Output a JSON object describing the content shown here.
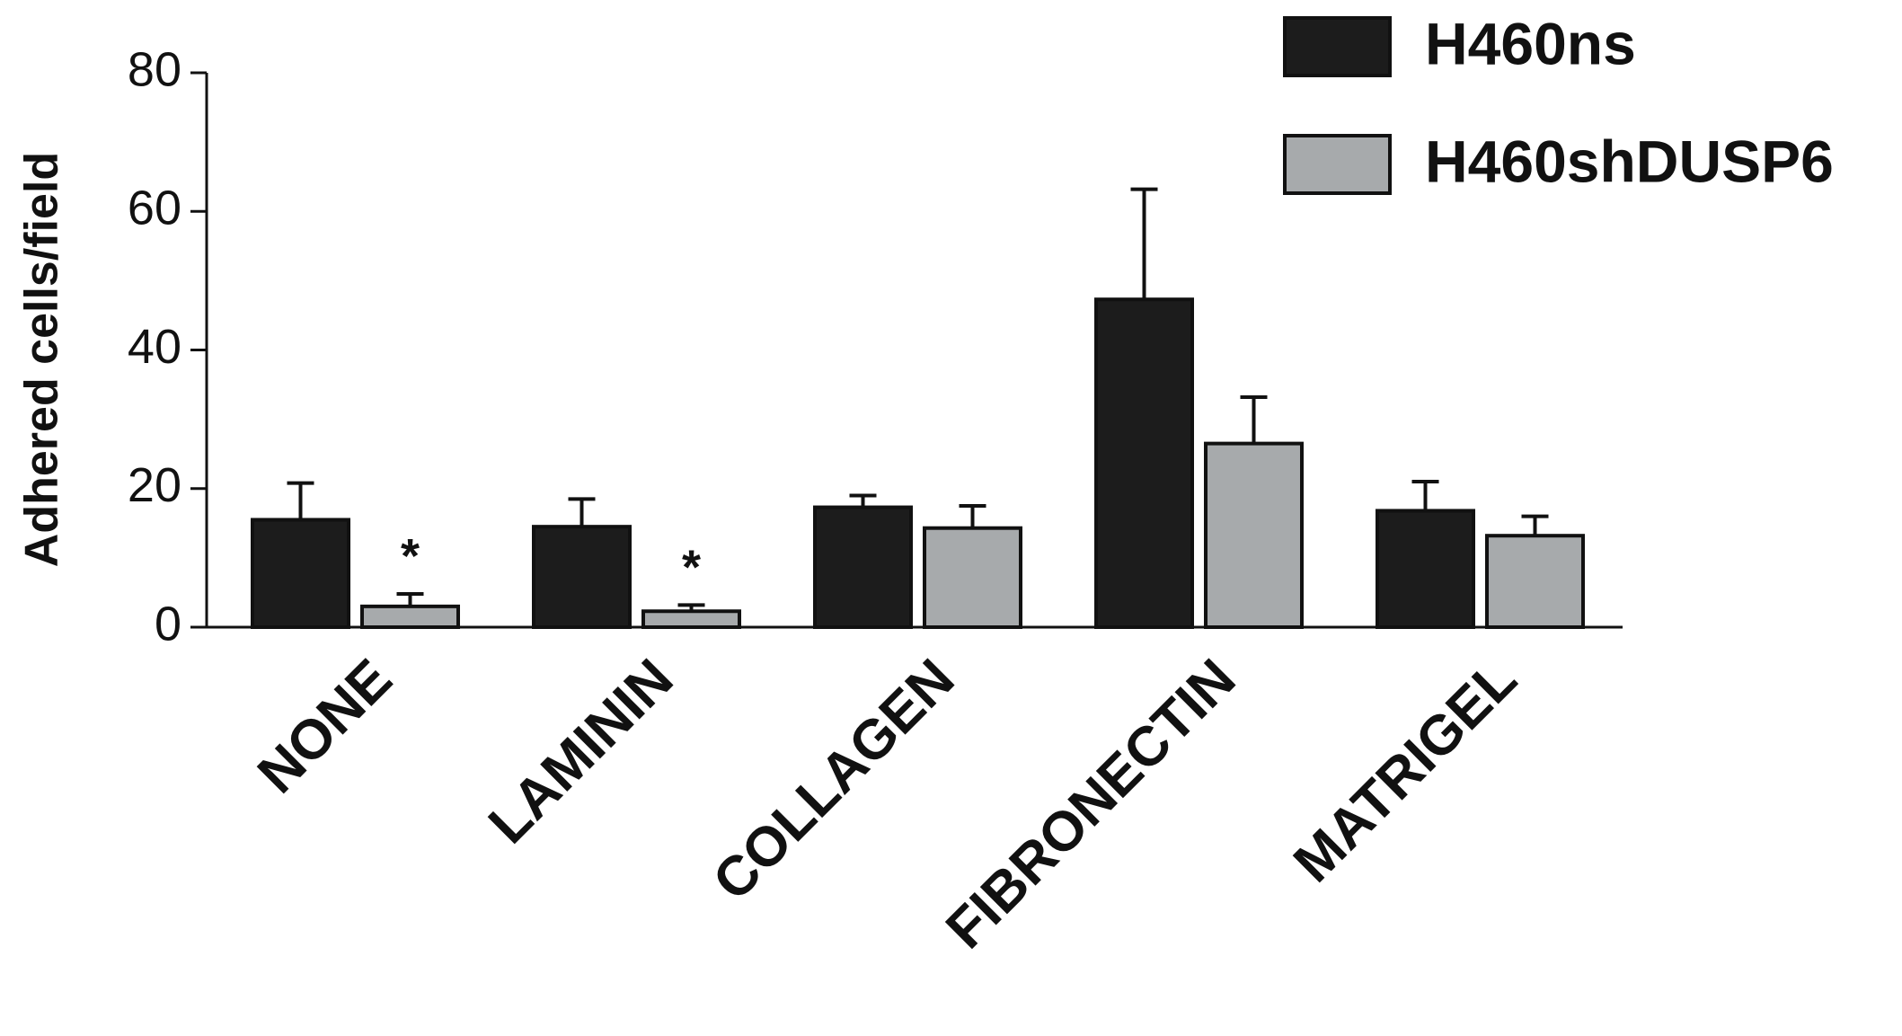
{
  "chart_data": {
    "type": "bar",
    "y_label": "Adhered cells/field",
    "categories": [
      "NONE",
      "LAMININ",
      "COLLAGEN",
      "FIBRONECTIN",
      "MATRIGEL"
    ],
    "series": [
      {
        "name": "H460ns",
        "color": "#1c1c1c",
        "values": [
          15.5,
          14.5,
          17.3,
          47.3,
          16.8
        ],
        "errors": [
          5.3,
          4,
          1.7,
          15.9,
          4.2
        ]
      },
      {
        "name": "H460shDUSP6",
        "color": "#a7aaac",
        "values": [
          3,
          2.3,
          14.3,
          26.5,
          13.2
        ],
        "errors": [
          1.8,
          0.9,
          3.2,
          6.7,
          2.8
        ],
        "markers": [
          "*",
          "*",
          null,
          null,
          null
        ]
      }
    ],
    "ylim": [
      0,
      80
    ],
    "yticks": [
      0,
      20,
      40,
      60,
      80
    ]
  }
}
